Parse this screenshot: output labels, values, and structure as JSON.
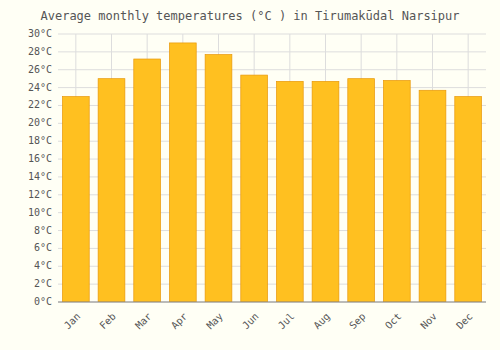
{
  "chart_data": {
    "type": "bar",
    "title": "Average monthly temperatures (°C ) in Tirumakūdal Narsipur",
    "categories": [
      "Jan",
      "Feb",
      "Mar",
      "Apr",
      "May",
      "Jun",
      "Jul",
      "Aug",
      "Sep",
      "Oct",
      "Nov",
      "Dec"
    ],
    "values": [
      23,
      25,
      27.2,
      29,
      27.7,
      25.4,
      24.7,
      24.7,
      25,
      24.8,
      23.7,
      23
    ],
    "color": "#FFC020",
    "ylim": [
      0,
      30
    ],
    "yticks": [
      {
        "value": 0,
        "label": "0°C"
      },
      {
        "value": 2,
        "label": "2°C"
      },
      {
        "value": 4,
        "label": "4°C"
      },
      {
        "value": 6,
        "label": "6°C"
      },
      {
        "value": 8,
        "label": "8°C"
      },
      {
        "value": 10,
        "label": "10°C"
      },
      {
        "value": 12,
        "label": "12°C"
      },
      {
        "value": 14,
        "label": "14°C"
      },
      {
        "value": 16,
        "label": "16°C"
      },
      {
        "value": 18,
        "label": "18°C"
      },
      {
        "value": 20,
        "label": "20°C"
      },
      {
        "value": 22,
        "label": "22°C"
      },
      {
        "value": 24,
        "label": "24°C"
      },
      {
        "value": 26,
        "label": "26°C"
      },
      {
        "value": 28,
        "label": "28°C"
      },
      {
        "value": 30,
        "label": "30°C"
      }
    ],
    "grid": true
  }
}
